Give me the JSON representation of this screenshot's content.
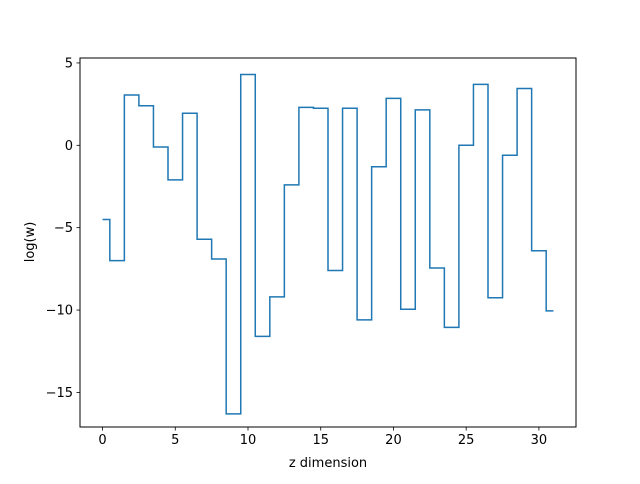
{
  "colors": {
    "line": "#1f77b4",
    "axes": "#000000",
    "background": "#ffffff"
  },
  "chart_data": {
    "type": "line",
    "drawstyle": "steps-mid",
    "title": "",
    "xlabel": "z dimension",
    "ylabel": "log(w)",
    "xlim": [
      -1.55,
      32.55
    ],
    "ylim": [
      -17.1,
      5.3
    ],
    "xticks": [
      0,
      5,
      10,
      15,
      20,
      25,
      30
    ],
    "yticks": [
      5,
      0,
      -5,
      -10,
      -15
    ],
    "xtick_labels": [
      "0",
      "5",
      "10",
      "15",
      "20",
      "25",
      "30"
    ],
    "ytick_labels": [
      "5",
      "0",
      "−5",
      "−10",
      "−15"
    ],
    "grid": false,
    "legend": false,
    "series": [
      {
        "x": [
          0,
          1,
          2,
          3,
          4,
          5,
          6,
          7,
          8,
          9,
          10,
          11,
          12,
          13,
          14,
          15,
          16,
          17,
          18,
          19,
          20,
          21,
          22,
          23,
          24,
          25,
          26,
          27,
          28,
          29,
          30,
          31
        ],
        "values": [
          -4.5,
          -7.0,
          3.05,
          2.4,
          -0.1,
          -2.1,
          1.95,
          -5.7,
          -6.9,
          -16.3,
          4.3,
          -11.6,
          -9.2,
          -2.4,
          2.3,
          2.25,
          -7.6,
          2.25,
          -10.6,
          -1.3,
          2.85,
          -9.95,
          2.15,
          -7.45,
          -11.05,
          0.0,
          3.7,
          -9.25,
          -0.6,
          3.45,
          -6.4,
          -10.05
        ]
      }
    ]
  }
}
